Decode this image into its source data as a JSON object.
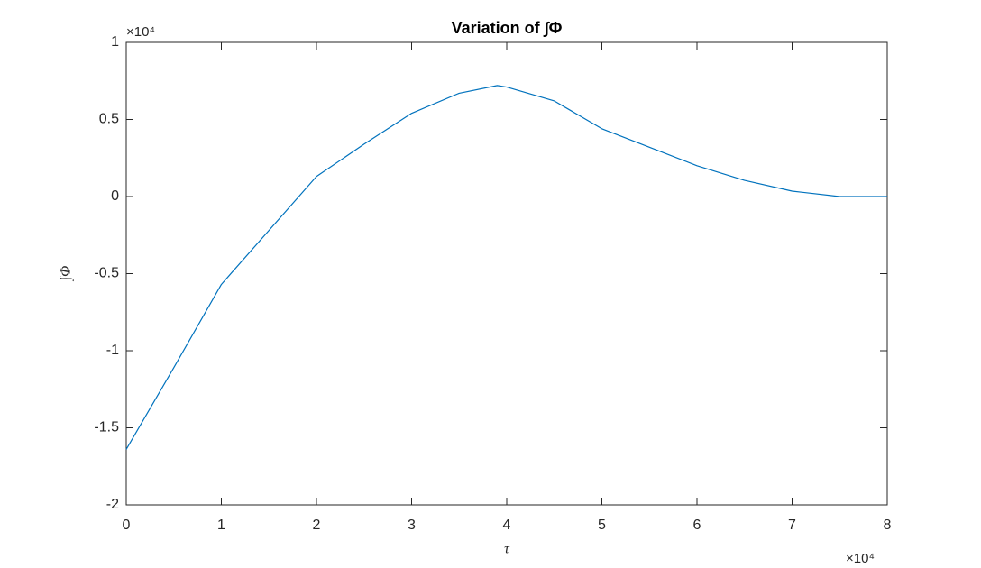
{
  "chart_data": {
    "type": "line",
    "title": "Variation of ∫Φ",
    "x_label": "τ",
    "y_label": "∫Φ",
    "x_multiplier": "×10⁴",
    "y_multiplier": "×10⁴",
    "x": [
      0,
      0.5,
      1,
      1.5,
      2,
      2.5,
      3,
      3.5,
      3.9,
      4,
      4.5,
      5,
      5.5,
      6,
      6.5,
      7,
      7.5,
      8
    ],
    "values": [
      -1.64,
      -1.11,
      -0.57,
      -0.22,
      0.13,
      0.34,
      0.54,
      0.67,
      0.72,
      0.71,
      0.62,
      0.44,
      0.32,
      0.2,
      0.105,
      0.035,
      0,
      0
    ],
    "color": "#0072bd",
    "xlim": [
      0,
      8
    ],
    "xticks": [
      0,
      1,
      2,
      3,
      4,
      5,
      6,
      7,
      8
    ],
    "ylim": [
      -2,
      1
    ],
    "yticks": [
      -2,
      -1.5,
      -1,
      -0.5,
      0,
      0.5,
      1
    ],
    "grid": false
  }
}
